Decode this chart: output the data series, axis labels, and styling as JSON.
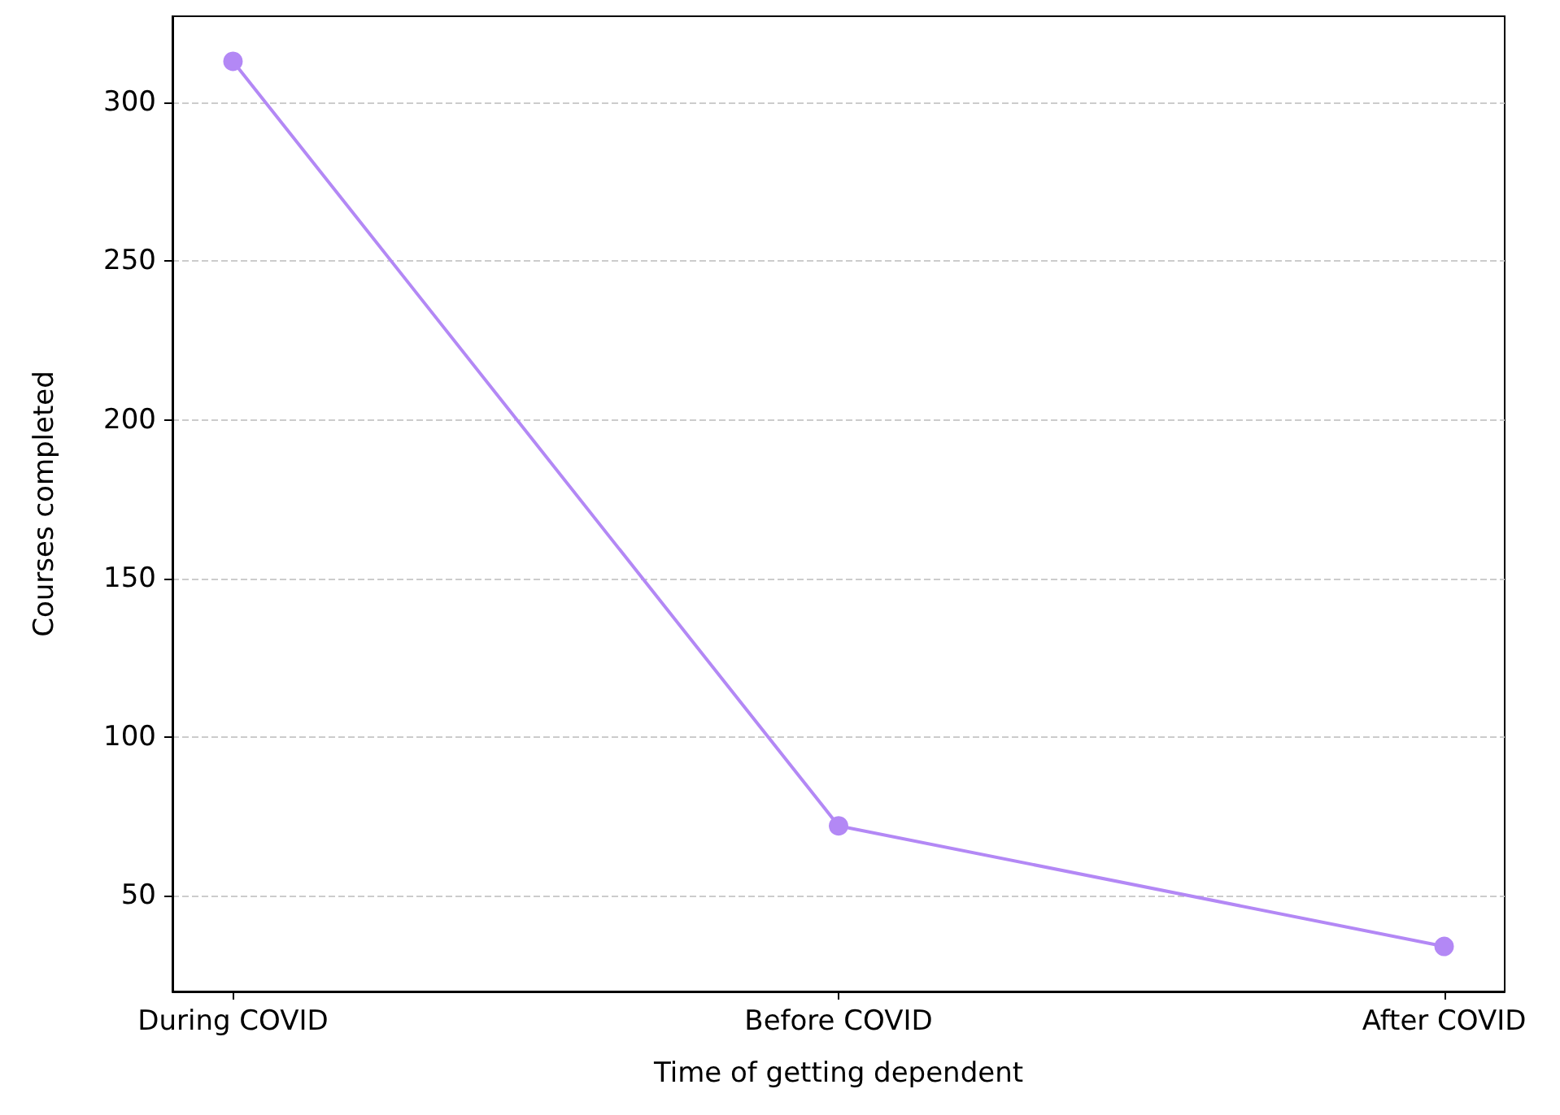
{
  "chart_data": {
    "type": "line",
    "xlabel": "Time of getting dependent",
    "ylabel": "Courses completed",
    "categories": [
      "During COVID",
      "Before COVID",
      "After COVID"
    ],
    "series": [
      {
        "color": "#b388f5",
        "values": [
          313,
          72,
          34
        ]
      }
    ],
    "ylim": [
      19.8,
      327.2
    ],
    "yticks": [
      50,
      100,
      150,
      200,
      250,
      300
    ],
    "grid": "y",
    "marker": "circle",
    "line_style": "solid"
  }
}
